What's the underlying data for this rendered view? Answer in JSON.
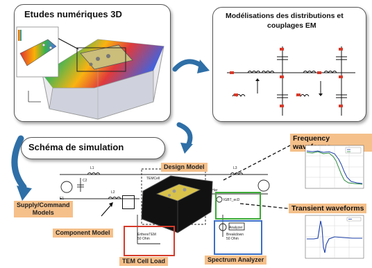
{
  "panels": {
    "etudes": {
      "title": "Etudes  numériques 3D"
    },
    "modelisation": {
      "title_line1": "Modélisations des distributions et",
      "title_line2": "couplages EM"
    },
    "schema": {
      "title": "Schéma  de  simulation"
    }
  },
  "labels": {
    "design_model": "Design Model",
    "supply_models_line1": "Supply/Command",
    "supply_models_line2": "Models",
    "component_model": "Component Model",
    "tem_cell_load": "TEM Cell Load",
    "spectrum_analyzer": "Spectrum Analyzer",
    "frequency_waveforms": "Frequency waveforms",
    "transient_waveforms": "Transient waveforms"
  },
  "colors": {
    "arrow_blue": "#2e6fa7",
    "tag_orange": "#f5c08a",
    "box_red": "#d63a2a",
    "box_green": "#3aaa35",
    "box_blue": "#3a6fc6"
  }
}
